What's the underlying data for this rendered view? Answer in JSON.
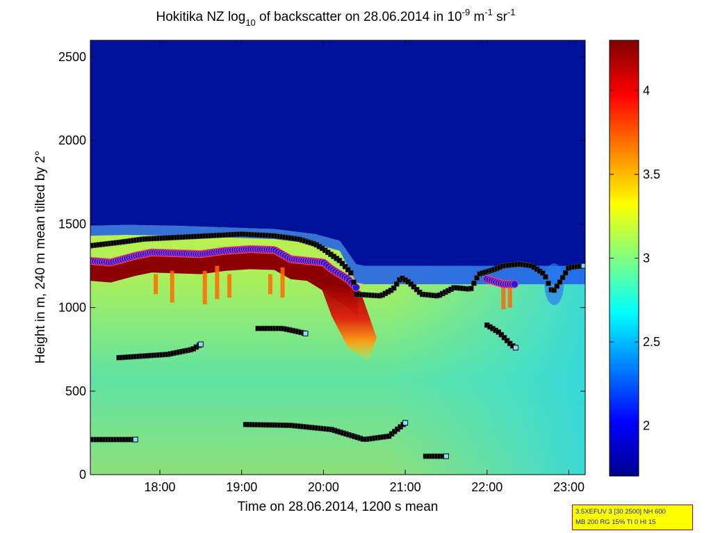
{
  "chart_data": {
    "type": "heatmap",
    "title": {
      "pre": "Hokitika NZ log",
      "sub": "10",
      "mid": " of backscatter on 28.06.2014 in 10",
      "sup1": "-9",
      "mid2": " m",
      "sup2": "-1",
      "mid3": " sr",
      "sup3": "-1"
    },
    "xlabel": "Time on 28.06.2014, 1200 s mean",
    "ylabel": "Height in m, 240 m mean tilted by 2°",
    "xlim_hours": [
      17.15,
      23.2
    ],
    "ylim": [
      0,
      2600
    ],
    "x_ticks": [
      {
        "value": 18,
        "label": "18:00"
      },
      {
        "value": 19,
        "label": "19:00"
      },
      {
        "value": 20,
        "label": "20:00"
      },
      {
        "value": 21,
        "label": "21:00"
      },
      {
        "value": 22,
        "label": "22:00"
      },
      {
        "value": 23,
        "label": "23:00"
      }
    ],
    "y_ticks": [
      {
        "value": 0,
        "label": "0"
      },
      {
        "value": 500,
        "label": "500"
      },
      {
        "value": 1000,
        "label": "1000"
      },
      {
        "value": 1500,
        "label": "1500"
      },
      {
        "value": 2000,
        "label": "2000"
      },
      {
        "value": 2500,
        "label": "2500"
      }
    ],
    "colorbar": {
      "min": 1.7,
      "max": 4.3,
      "colormap": "jet",
      "ticks": [
        {
          "value": 2,
          "label": "2"
        },
        {
          "value": 2.5,
          "label": "2.5"
        },
        {
          "value": 3,
          "label": "3"
        },
        {
          "value": 3.5,
          "label": "3.5"
        },
        {
          "value": 4,
          "label": "4"
        }
      ]
    },
    "aerosol_top_height_profile": [
      [
        17.15,
        1490
      ],
      [
        17.6,
        1495
      ],
      [
        18.2,
        1490
      ],
      [
        18.8,
        1480
      ],
      [
        19.4,
        1470
      ],
      [
        19.9,
        1440
      ],
      [
        20.2,
        1400
      ],
      [
        20.4,
        1260
      ],
      [
        20.5,
        1250
      ],
      [
        21.0,
        1250
      ],
      [
        22.0,
        1250
      ],
      [
        22.5,
        1250
      ],
      [
        23.2,
        1250
      ]
    ],
    "cloud_base_layer_blue": [
      [
        17.15,
        1280
      ],
      [
        17.4,
        1270
      ],
      [
        17.7,
        1310
      ],
      [
        17.9,
        1330
      ],
      [
        18.2,
        1325
      ],
      [
        18.5,
        1320
      ],
      [
        18.8,
        1340
      ],
      [
        19.1,
        1350
      ],
      [
        19.4,
        1345
      ],
      [
        19.6,
        1290
      ],
      [
        19.8,
        1280
      ],
      [
        20.0,
        1270
      ],
      [
        20.1,
        1230
      ],
      [
        20.3,
        1170
      ],
      [
        20.42,
        1110
      ],
      [
        22.0,
        1170
      ],
      [
        22.2,
        1140
      ],
      [
        22.35,
        1140
      ]
    ],
    "layer_markers_black": [
      [
        [
          17.15,
          1370
        ],
        [
          17.5,
          1390
        ],
        [
          17.8,
          1410
        ],
        [
          18.2,
          1420
        ],
        [
          18.6,
          1430
        ],
        [
          19.0,
          1440
        ],
        [
          19.4,
          1430
        ],
        [
          19.7,
          1410
        ],
        [
          19.9,
          1380
        ],
        [
          20.0,
          1350
        ],
        [
          20.2,
          1280
        ],
        [
          20.35,
          1200
        ],
        [
          20.4,
          1080
        ],
        [
          20.7,
          1070
        ],
        [
          20.85,
          1110
        ],
        [
          20.95,
          1180
        ],
        [
          21.05,
          1150
        ],
        [
          21.2,
          1080
        ],
        [
          21.4,
          1070
        ],
        [
          21.6,
          1120
        ],
        [
          21.8,
          1110
        ],
        [
          21.9,
          1200
        ],
        [
          22.1,
          1230
        ],
        [
          22.2,
          1250
        ],
        [
          22.4,
          1260
        ],
        [
          22.55,
          1250
        ],
        [
          22.7,
          1200
        ],
        [
          22.8,
          1090
        ],
        [
          22.9,
          1160
        ],
        [
          23.0,
          1240
        ],
        [
          23.18,
          1250
        ]
      ],
      [
        [
          17.5,
          700
        ],
        [
          17.8,
          710
        ],
        [
          18.1,
          720
        ],
        [
          18.4,
          750
        ],
        [
          18.5,
          780
        ]
      ],
      [
        [
          19.2,
          875
        ],
        [
          19.5,
          875
        ],
        [
          19.65,
          860
        ],
        [
          19.78,
          845
        ]
      ],
      [
        [
          17.15,
          210
        ],
        [
          17.7,
          210
        ]
      ],
      [
        [
          19.05,
          300
        ],
        [
          19.6,
          295
        ],
        [
          20.1,
          270
        ],
        [
          20.5,
          210
        ],
        [
          20.8,
          230
        ],
        [
          21.0,
          310
        ]
      ],
      [
        [
          21.25,
          110
        ],
        [
          21.5,
          110
        ]
      ],
      [
        [
          22.0,
          895
        ],
        [
          22.15,
          850
        ],
        [
          22.3,
          775
        ],
        [
          22.35,
          760
        ]
      ]
    ]
  },
  "info_box": {
    "line1": "3.5XEFUV 3 [30 2500] NH 600",
    "line2": "MB 200 RG 15% TI 0 HI 15"
  }
}
